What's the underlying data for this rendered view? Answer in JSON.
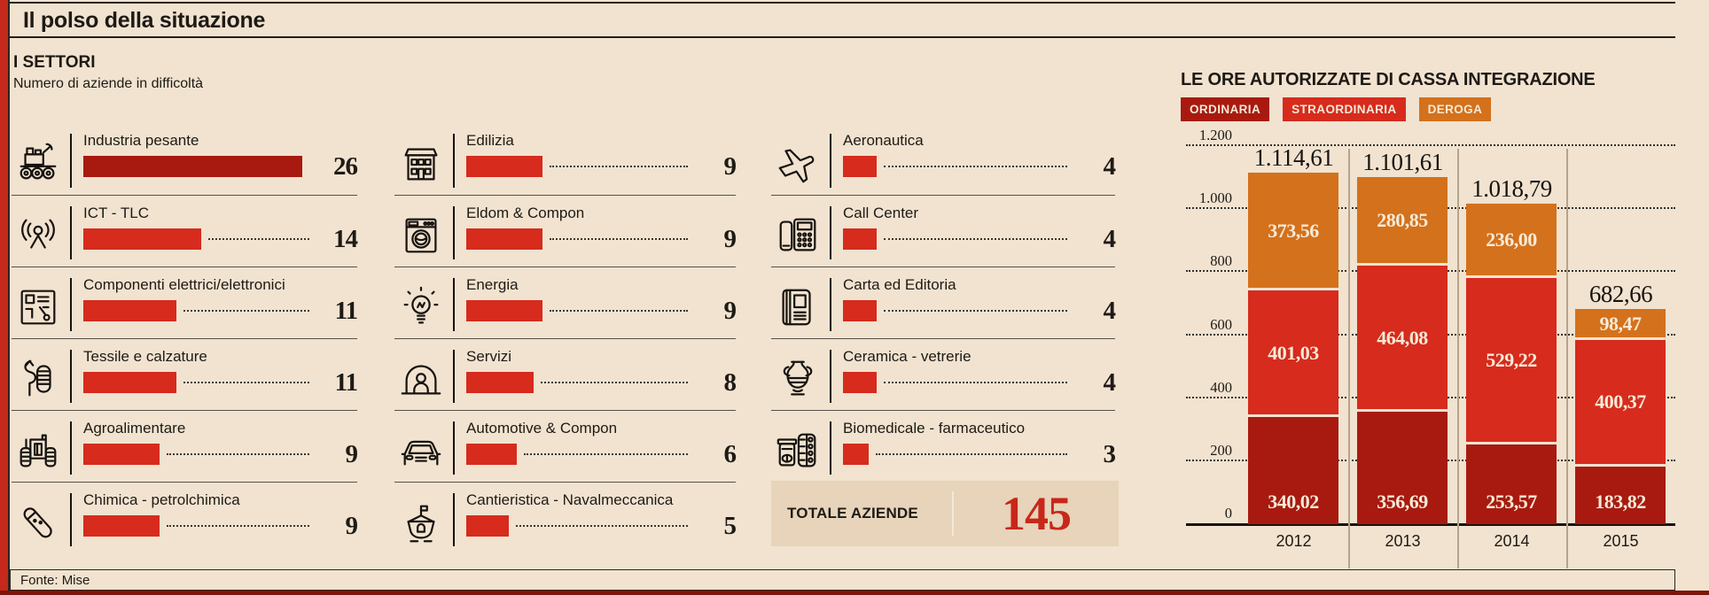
{
  "header": {
    "title": "Il polso della situazione"
  },
  "footer": {
    "source": "Fonte: Mise"
  },
  "chart_data": [
    {
      "id": "sectors",
      "type": "bar",
      "orientation": "horizontal",
      "title": "I SETTORI",
      "subtitle": "Numero di aziende in difficoltà",
      "xlim": [
        0,
        26
      ],
      "columns": [
        [
          {
            "label": "Industria pesante",
            "value": 26,
            "icon": "industrial-machine-icon",
            "color": "#a81a10"
          },
          {
            "label": "ICT - TLC",
            "value": 14,
            "icon": "radio-antenna-icon",
            "color": "#d62b1d"
          },
          {
            "label": "Componenti elettrici/elettronici",
            "value": 11,
            "icon": "circuit-board-icon",
            "color": "#d62b1d"
          },
          {
            "label": "Tessile e calzature",
            "value": 11,
            "icon": "textile-spool-icon",
            "color": "#d62b1d"
          },
          {
            "label": "Agroalimentare",
            "value": 9,
            "icon": "tractor-icon",
            "color": "#d62b1d"
          },
          {
            "label": "Chimica - petrolchimica",
            "value": 9,
            "icon": "test-tube-icon",
            "color": "#d62b1d"
          }
        ],
        [
          {
            "label": "Edilizia",
            "value": 9,
            "icon": "building-icon",
            "color": "#d62b1d"
          },
          {
            "label": "Eldom & Compon",
            "value": 9,
            "icon": "washing-machine-icon",
            "color": "#d62b1d"
          },
          {
            "label": "Energia",
            "value": 9,
            "icon": "light-bulb-icon",
            "color": "#d62b1d"
          },
          {
            "label": "Servizi",
            "value": 8,
            "icon": "worker-arch-icon",
            "color": "#d62b1d"
          },
          {
            "label": "Automotive & Compon",
            "value": 6,
            "icon": "car-icon",
            "color": "#d62b1d"
          },
          {
            "label": "Cantieristica - Navalmeccanica",
            "value": 5,
            "icon": "ship-icon",
            "color": "#d62b1d"
          }
        ],
        [
          {
            "label": "Aeronautica",
            "value": 4,
            "icon": "airplane-icon",
            "color": "#d62b1d"
          },
          {
            "label": "Call Center",
            "value": 4,
            "icon": "desk-phone-icon",
            "color": "#d62b1d"
          },
          {
            "label": "Carta ed Editoria",
            "value": 4,
            "icon": "book-icon",
            "color": "#d62b1d"
          },
          {
            "label": "Ceramica - vetrerie",
            "value": 4,
            "icon": "amphora-icon",
            "color": "#d62b1d"
          },
          {
            "label": "Biomedicale - farmaceutico",
            "value": 3,
            "icon": "pills-icon",
            "color": "#d62b1d"
          }
        ]
      ],
      "total": {
        "label": "TOTALE AZIENDE",
        "value": "145",
        "color": "#c8271a"
      }
    },
    {
      "id": "cassa-integrazione",
      "type": "bar",
      "stacked": true,
      "title": "LE ORE AUTORIZZATE DI CASSA INTEGRAZIONE",
      "categories": [
        "2012",
        "2013",
        "2014",
        "2015"
      ],
      "series": [
        {
          "name": "ORDINARIA",
          "color": "#a81a10",
          "values": [
            340.02,
            356.69,
            253.57,
            183.82
          ],
          "value_labels": [
            "340,02",
            "356,69",
            "253,57",
            "183,82"
          ]
        },
        {
          "name": "STRAORDINARIA",
          "color": "#d62b1d",
          "values": [
            401.03,
            464.08,
            529.22,
            400.37
          ],
          "value_labels": [
            "401,03",
            "464,08",
            "529,22",
            "400,37"
          ]
        },
        {
          "name": "DEROGA",
          "color": "#d4711c",
          "values": [
            373.56,
            280.85,
            236.0,
            98.47
          ],
          "value_labels": [
            "373,56",
            "280,85",
            "236,00",
            "98,47"
          ]
        }
      ],
      "totals": [
        1114.61,
        1101.61,
        1018.79,
        682.66
      ],
      "total_labels": [
        "1.114,61",
        "1.101,61",
        "1.018,79",
        "682,66"
      ],
      "ylim": [
        0,
        1200
      ],
      "yticks": [
        0,
        200,
        400,
        600,
        800,
        1000,
        1200
      ],
      "ytick_labels": [
        "0",
        "200",
        "400",
        "600",
        "800",
        "1.000",
        "1.200"
      ],
      "grid": "horizontal-dotted",
      "legend_position": "top-left",
      "legend": [
        {
          "label": "ORDINARIA",
          "color": "#a81a10"
        },
        {
          "label": "STRAORDINARIA",
          "color": "#d62b1d"
        },
        {
          "label": "DEROGA",
          "color": "#d4711c"
        }
      ]
    }
  ]
}
